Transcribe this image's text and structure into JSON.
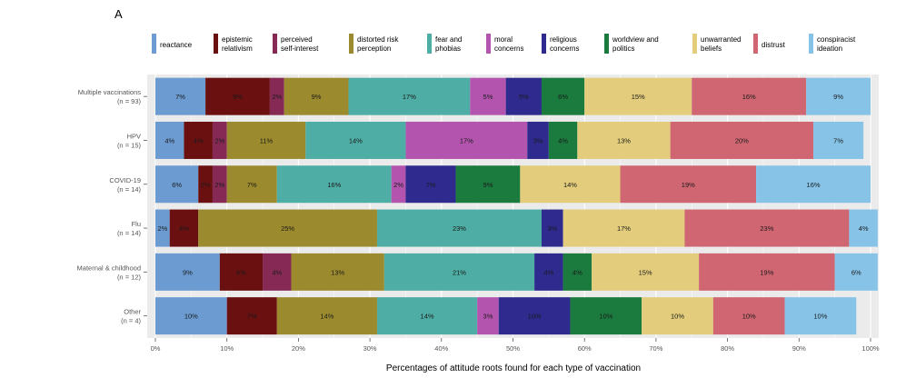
{
  "panel_label": "A",
  "chart_data": {
    "type": "bar",
    "orientation": "horizontal",
    "stacked": true,
    "xlabel": "Percentages of attitude roots found for each type of vaccination",
    "ylabel": "",
    "xlim": [
      0,
      100
    ],
    "x_ticks": [
      "0%",
      "10%",
      "20%",
      "30%",
      "40%",
      "50%",
      "60%",
      "70%",
      "80%",
      "90%",
      "100%"
    ],
    "legend_position": "top",
    "grid": true,
    "categories": [
      {
        "name": "Multiple vaccinations",
        "n": "(n = 93)"
      },
      {
        "name": "HPV",
        "n": "(n = 15)"
      },
      {
        "name": "COVID-19",
        "n": "(n = 14)"
      },
      {
        "name": "Flu",
        "n": "(n = 14)"
      },
      {
        "name": "Maternal & childhood",
        "n": "(n = 12)"
      },
      {
        "name": "Other",
        "n": "(n = 4)"
      }
    ],
    "series": [
      {
        "name": "reactance",
        "legend_lines": [
          "reactance"
        ],
        "color": "#6c9bd2",
        "values": [
          7,
          4,
          6,
          2,
          9,
          10
        ],
        "labels": [
          "7%",
          "4%",
          "6%",
          "2%",
          "9%",
          "10%"
        ]
      },
      {
        "name": "epistemic relativism",
        "legend_lines": [
          "epistemic",
          "relativism"
        ],
        "color": "#6b1010",
        "values": [
          9,
          4,
          2,
          4,
          6,
          7
        ],
        "labels": [
          "9%",
          "4%",
          "2%",
          "4%",
          "6%",
          "7%"
        ]
      },
      {
        "name": "perceived self-interest",
        "legend_lines": [
          "perceived",
          "self-interest"
        ],
        "color": "#862a55",
        "values": [
          2,
          2,
          2,
          0,
          4,
          0
        ],
        "labels": [
          "2%",
          "2%",
          "2%",
          "",
          "4%",
          ""
        ]
      },
      {
        "name": "distorted risk perception",
        "legend_lines": [
          "distorted risk",
          "perception"
        ],
        "color": "#9c8b2e",
        "values": [
          9,
          11,
          7,
          25,
          13,
          14
        ],
        "labels": [
          "9%",
          "11%",
          "7%",
          "25%",
          "13%",
          "14%"
        ]
      },
      {
        "name": "fear and phobias",
        "legend_lines": [
          "fear and",
          "phobias"
        ],
        "color": "#4eada4",
        "values": [
          17,
          14,
          16,
          23,
          21,
          14
        ],
        "labels": [
          "17%",
          "14%",
          "16%",
          "23%",
          "21%",
          "14%"
        ]
      },
      {
        "name": "moral concerns",
        "legend_lines": [
          "moral",
          "concerns"
        ],
        "color": "#b355ae",
        "values": [
          5,
          17,
          2,
          0,
          0,
          3
        ],
        "labels": [
          "5%",
          "17%",
          "2%",
          "",
          "",
          "3%"
        ]
      },
      {
        "name": "religious concerns",
        "legend_lines": [
          "religious",
          "concerns"
        ],
        "color": "#2e2a8e",
        "values": [
          5,
          3,
          7,
          3,
          4,
          10
        ],
        "labels": [
          "5%",
          "3%",
          "7%",
          "3%",
          "4%",
          "10%"
        ]
      },
      {
        "name": "worldview and politics",
        "legend_lines": [
          "worldview and",
          "politics"
        ],
        "color": "#1b7a3d",
        "values": [
          6,
          4,
          9,
          0,
          4,
          10
        ],
        "labels": [
          "6%",
          "4%",
          "9%",
          "",
          "4%",
          "10%"
        ]
      },
      {
        "name": "unwarranted beliefs",
        "legend_lines": [
          "unwarranted",
          "beliefs"
        ],
        "color": "#e3cd7c",
        "values": [
          15,
          13,
          14,
          17,
          15,
          10
        ],
        "labels": [
          "15%",
          "13%",
          "14%",
          "17%",
          "15%",
          "10%"
        ]
      },
      {
        "name": "distrust",
        "legend_lines": [
          "distrust"
        ],
        "color": "#cf6672",
        "values": [
          16,
          20,
          19,
          23,
          19,
          10
        ],
        "labels": [
          "16%",
          "20%",
          "19%",
          "23%",
          "19%",
          "10%"
        ]
      },
      {
        "name": "conspiracist ideation",
        "legend_lines": [
          "conspiracist",
          "ideation"
        ],
        "color": "#86c3e7",
        "values": [
          9,
          7,
          16,
          4,
          6,
          10
        ],
        "labels": [
          "9%",
          "7%",
          "16%",
          "4%",
          "6%",
          "10%"
        ]
      }
    ]
  }
}
